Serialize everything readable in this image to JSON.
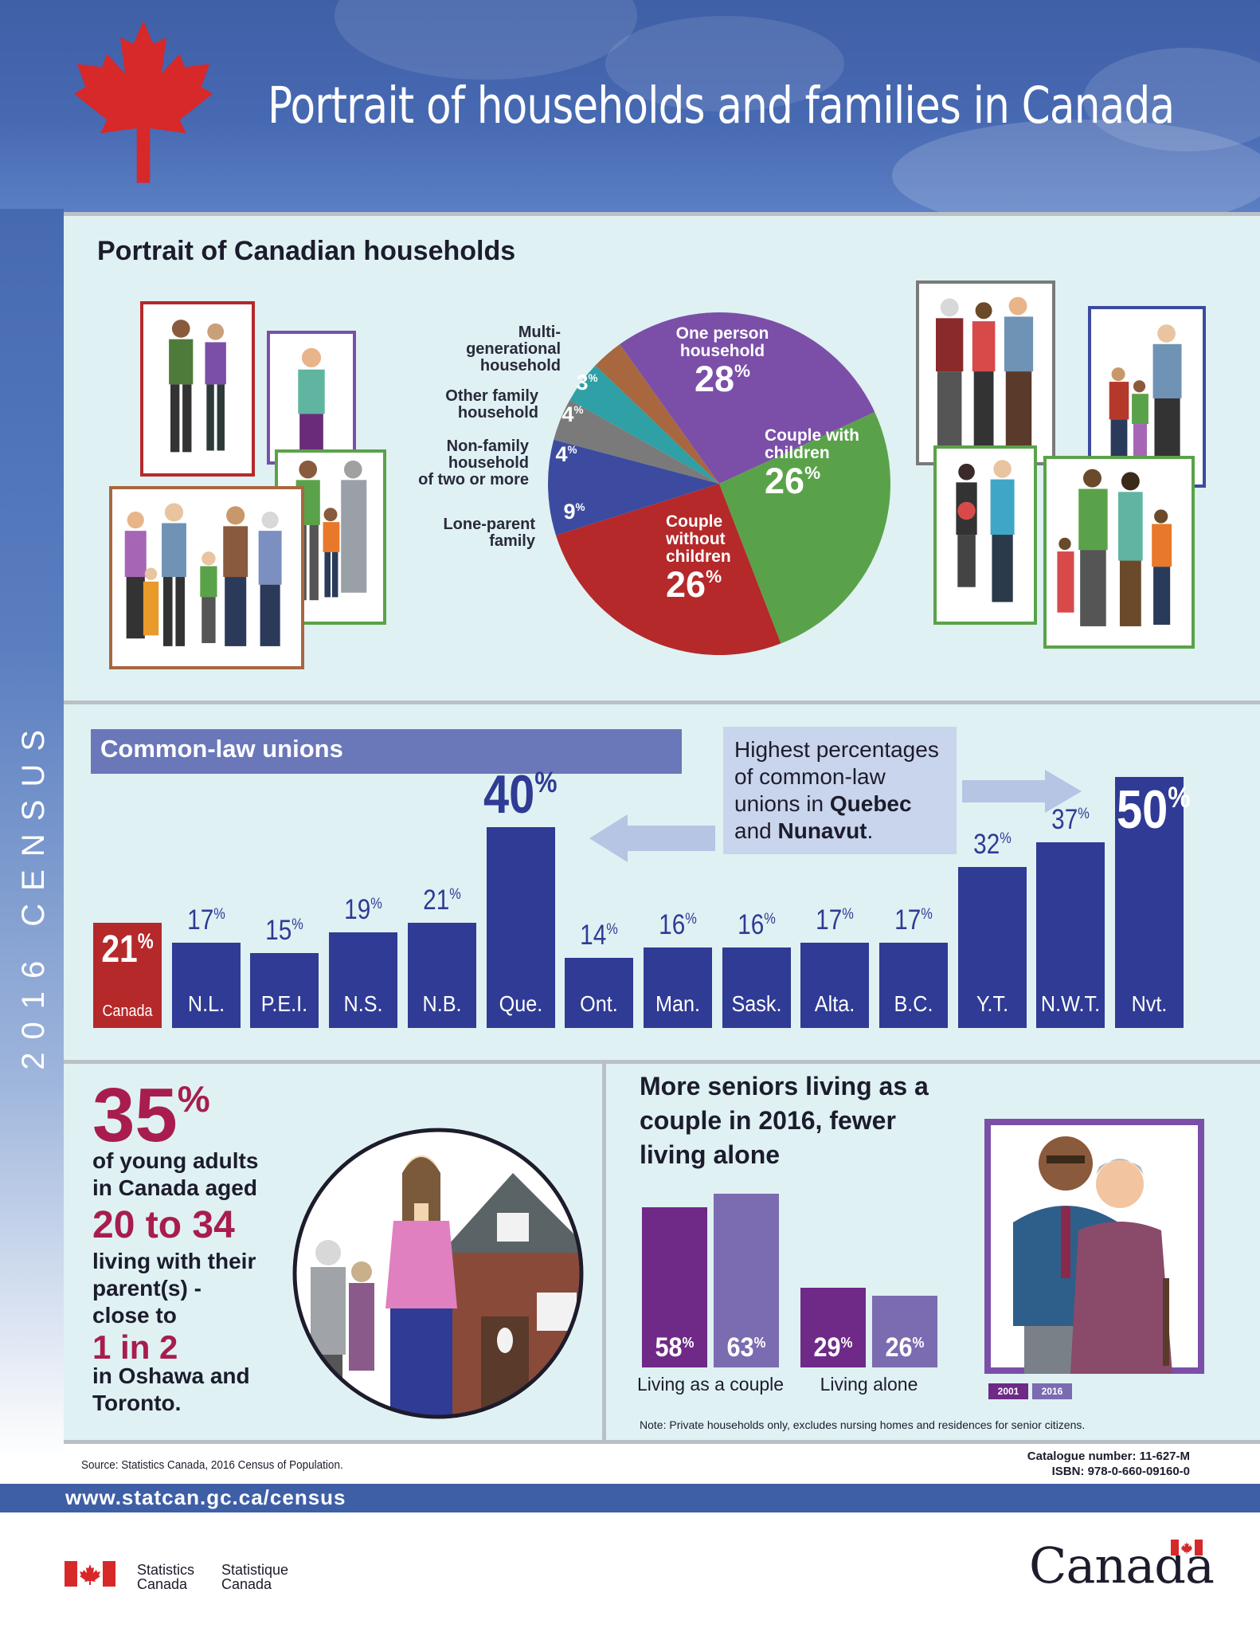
{
  "header": {
    "title": "Portrait of households and families in Canada"
  },
  "sidebar": {
    "vertical_text": "2016 CENSUS"
  },
  "households": {
    "title": "Portrait of Canadian households",
    "chart_data": {
      "type": "pie",
      "labels": [
        "One person household",
        "Couple with children",
        "Couple without children",
        "Lone-parent family",
        "Non-family household of two or more",
        "Other family household",
        "Multi-generational household"
      ],
      "values": [
        28,
        26,
        26,
        9,
        4,
        4,
        3
      ],
      "unit": "%",
      "colors": [
        "#7b4fa8",
        "#5aa24a",
        "#b5292a",
        "#3c4b9f",
        "#7a7a7a",
        "#2fa0a5",
        "#a8673f"
      ]
    },
    "label_lines": {
      "one_person": [
        "One person",
        "household"
      ],
      "couple_children": [
        "Couple with",
        "children"
      ],
      "couple_no_children": [
        "Couple",
        "without",
        "children"
      ],
      "lone_parent": [
        "Lone-parent",
        "family"
      ],
      "non_family": [
        "Non-family",
        "household",
        "of two or more"
      ],
      "other_family": [
        "Other family",
        "household"
      ],
      "multi_gen": [
        "Multi-",
        "generational",
        "household"
      ]
    }
  },
  "common_law": {
    "title": "Common-law unions",
    "callout": {
      "line1": "Highest percentages",
      "line2": "of common-law",
      "line3a": "unions in ",
      "line3b": "Quebec",
      "line4a": "and ",
      "line4b": "Nunavut",
      "line4c": "."
    },
    "chart_data": {
      "type": "bar",
      "categories": [
        "Canada",
        "N.L.",
        "P.E.I.",
        "N.S.",
        "N.B.",
        "Que.",
        "Ont.",
        "Man.",
        "Sask.",
        "Alta.",
        "B.C.",
        "Y.T.",
        "N.W.T.",
        "Nvt."
      ],
      "values": [
        21,
        17,
        15,
        19,
        21,
        40,
        14,
        16,
        16,
        17,
        17,
        32,
        37,
        50
      ],
      "unit": "%",
      "colors": {
        "canada": "#b5292a",
        "provinces": "#2f3b94"
      }
    }
  },
  "young_adults": {
    "percent": "35",
    "percent_sign": "%",
    "line1": "of young adults",
    "line2": "in Canada aged",
    "age_range": "20 to 34",
    "line3": "living with their",
    "line4": "parent(s) -",
    "line5": "close to",
    "ratio": "1 in 2",
    "line6": "in Oshawa and",
    "line7": "Toronto."
  },
  "seniors": {
    "title": "More seniors living as a couple in 2016, fewer living alone",
    "chart_data": {
      "type": "bar",
      "categories": [
        "Living as a couple",
        "Living alone"
      ],
      "series": [
        {
          "name": "2001",
          "values": [
            58,
            29
          ]
        },
        {
          "name": "2016",
          "values": [
            63,
            26
          ]
        }
      ],
      "unit": "%",
      "colors": {
        "2001": "#6e2a86",
        "2016": "#7b6bb0"
      }
    },
    "note": "Note: Private households only, excludes nursing homes and residences for senior citizens."
  },
  "footer": {
    "source": "Source: Statistics Canada, 2016 Census of Population.",
    "catalogue": "Catalogue number: 11-627-M",
    "isbn": "ISBN: 978-0-660-09160-0",
    "url": "www.statcan.gc.ca/census",
    "agency_en_1": "Statistics",
    "agency_en_2": "Canada",
    "agency_fr_1": "Statistique",
    "agency_fr_2": "Canada",
    "wordmark": "Canada"
  }
}
